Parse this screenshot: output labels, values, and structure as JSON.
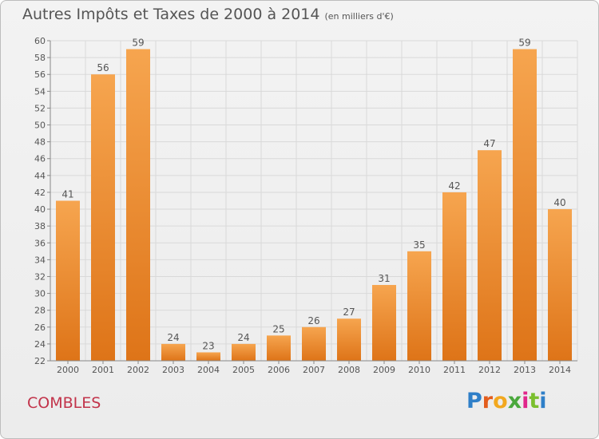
{
  "header": {
    "title": "Autres Impôts et Taxes de 2000 à 2014",
    "subtitle": "(en milliers d'€)"
  },
  "footer": {
    "commune": "COMBLES",
    "logo": "Proxiti"
  },
  "colors": {
    "bar_top": "#f6a54f",
    "bar_bottom": "#de7418",
    "grid": "#d9d9d9",
    "axis": "#888888",
    "text": "#555555",
    "commune": "#c2334a"
  },
  "chart_data": {
    "type": "bar",
    "title": "Autres Impôts et Taxes de 2000 à 2014",
    "subtitle": "(en milliers d'€)",
    "xlabel": "",
    "ylabel": "",
    "categories": [
      "2000",
      "2001",
      "2002",
      "2003",
      "2004",
      "2005",
      "2006",
      "2007",
      "2008",
      "2009",
      "2010",
      "2011",
      "2012",
      "2013",
      "2014"
    ],
    "values": [
      41,
      56,
      59,
      24,
      23,
      24,
      25,
      26,
      27,
      31,
      35,
      42,
      47,
      59,
      40
    ],
    "ylim": [
      22,
      60
    ],
    "yticks": [
      22,
      24,
      26,
      28,
      30,
      32,
      34,
      36,
      38,
      40,
      42,
      44,
      46,
      48,
      50,
      52,
      54,
      56,
      58,
      60
    ],
    "grid": true,
    "legend": "none"
  }
}
